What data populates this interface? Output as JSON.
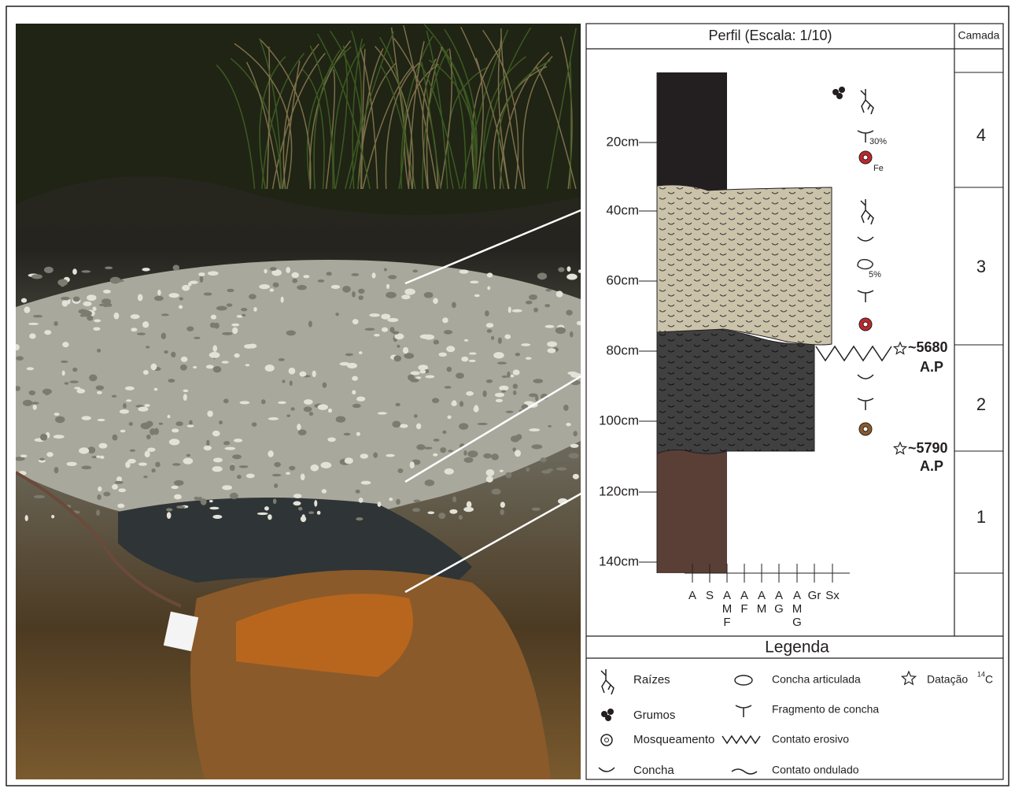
{
  "profile": {
    "title": "Perfil (Escala: 1/10)",
    "layer_header": "Camada",
    "depths": [
      "20cm",
      "40cm",
      "60cm",
      "80cm",
      "100cm",
      "120cm",
      "140cm"
    ],
    "layers": [
      "4",
      "3",
      "2",
      "1"
    ],
    "annotations": {
      "fragment_pct": "30%",
      "fe": "Fe",
      "shell_pct": "5%"
    },
    "datings": [
      {
        "age": "~5680",
        "unit": "A.P"
      },
      {
        "age": "~5790",
        "unit": "A.P"
      }
    ],
    "grain_sizes": [
      [
        "A"
      ],
      [
        "S"
      ],
      [
        "A",
        "M",
        "F"
      ],
      [
        "A",
        "F"
      ],
      [
        "A",
        "M"
      ],
      [
        "A",
        "G"
      ],
      [
        "A",
        "M",
        "G"
      ],
      [
        "Gr"
      ],
      [
        "Sx"
      ]
    ]
  },
  "legend": {
    "title": "Legenda",
    "items": [
      "Raízes",
      "Grumos",
      "Mosqueamento",
      "Concha",
      "Concha articulada",
      "Fragmento de concha",
      "Contato erosivo",
      "Contato ondulado"
    ],
    "dating": {
      "label": "Datação",
      "sup": "14",
      "tail": "C"
    }
  }
}
